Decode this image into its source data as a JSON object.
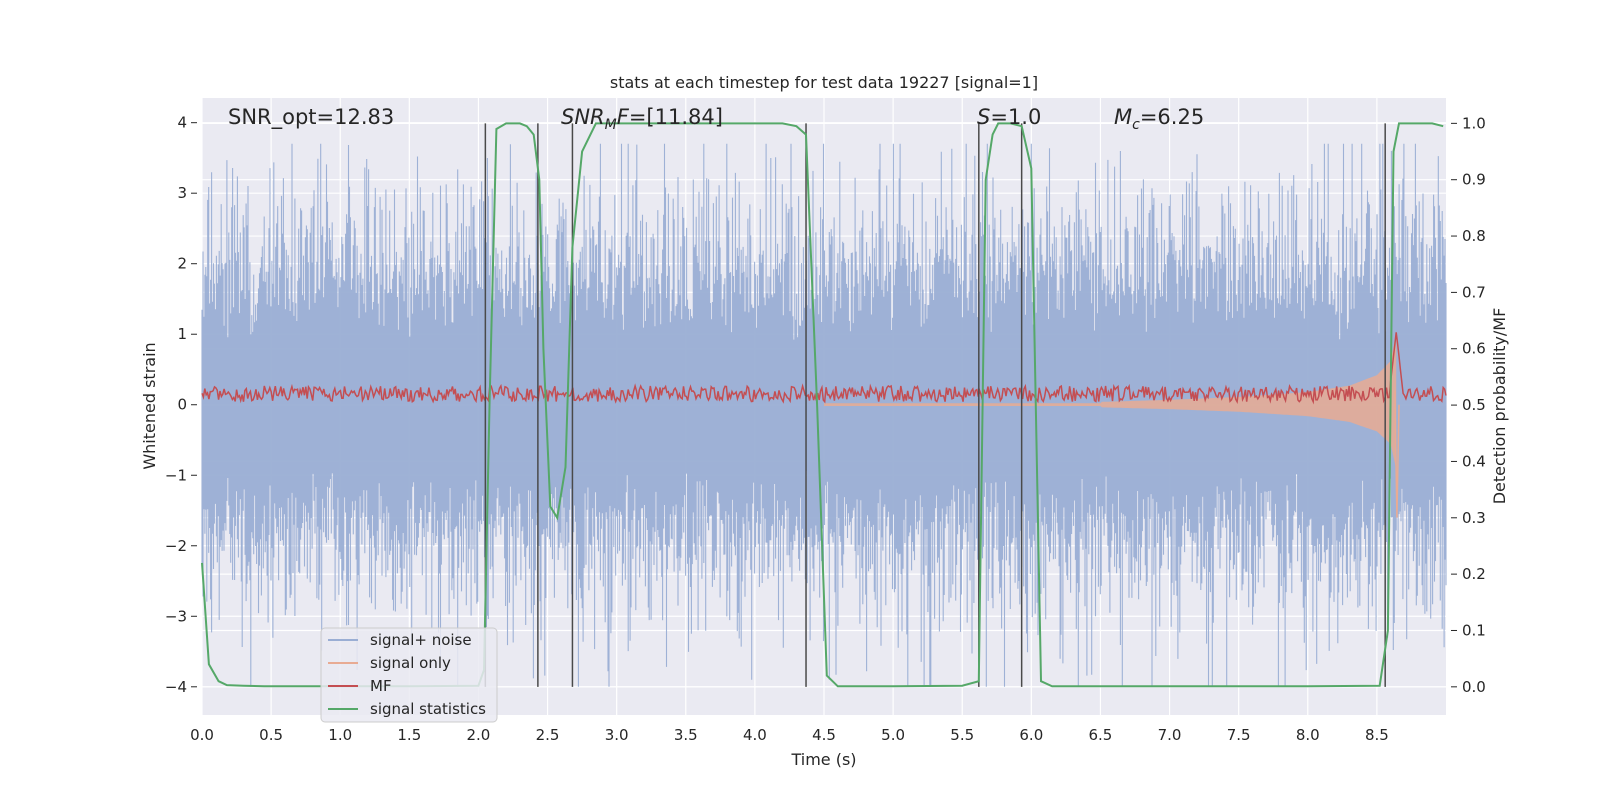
{
  "chart_data": {
    "type": "line",
    "title": "stats at each timestep for test data 19227 [signal=1]",
    "xlabel": "Time (s)",
    "ylabel_left": "Whitened strain",
    "ylabel_right": "Detection probability/MF",
    "xlim": [
      0.0,
      9.0
    ],
    "ylim_left": [
      -4.4,
      4.35
    ],
    "ylim_right": [
      -0.05,
      1.045
    ],
    "x_ticks": [
      "0.0",
      "0.5",
      "1.0",
      "1.5",
      "2.0",
      "2.5",
      "3.0",
      "3.5",
      "4.0",
      "4.5",
      "5.0",
      "5.5",
      "6.0",
      "6.5",
      "7.0",
      "7.5",
      "8.0",
      "8.5"
    ],
    "y_ticks_left": [
      "4",
      "3",
      "2",
      "1",
      "0",
      "−1",
      "−2",
      "−3",
      "−4"
    ],
    "y_ticks_right": [
      "1.0",
      "0.9",
      "0.8",
      "0.7",
      "0.6",
      "0.5",
      "0.4",
      "0.3",
      "0.2",
      "0.1",
      "0.0"
    ],
    "grid": true,
    "legend_position": "lower-left",
    "annotations": {
      "snr_opt": "SNR_opt=12.83",
      "snr_mf": "SNR_MF=[11.84]",
      "s": "S=1.0",
      "mc": "M_c=6.25"
    },
    "vertical_markers_x": [
      2.05,
      2.43,
      2.68,
      4.37,
      5.62,
      5.93,
      8.56
    ],
    "series": [
      {
        "name": "signal+ noise",
        "color": "#9aaed4",
        "description_values": "whitened strain, approx range -3.8 to 3.7"
      },
      {
        "name": "signal only",
        "color": "#e8ab93",
        "envelope": {
          "x": [
            6.5,
            7.0,
            7.5,
            8.0,
            8.3,
            8.5,
            8.6,
            8.64
          ],
          "amp": [
            0.02,
            0.05,
            0.09,
            0.16,
            0.25,
            0.4,
            0.6,
            1.0
          ]
        }
      },
      {
        "name": "MF",
        "color": "#c44e52",
        "baseline": 0.52,
        "peak": {
          "x": 8.64,
          "y": 0.63
        }
      },
      {
        "name": "signal statistics",
        "color": "#55a868",
        "x": [
          0.0,
          0.05,
          0.12,
          0.18,
          0.3,
          0.45,
          0.6,
          1.0,
          1.5,
          2.0,
          2.04,
          2.08,
          2.13,
          2.2,
          2.3,
          2.35,
          2.4,
          2.44,
          2.47,
          2.52,
          2.57,
          2.63,
          2.68,
          2.75,
          2.85,
          3.0,
          3.5,
          4.0,
          4.2,
          4.3,
          4.37,
          4.45,
          4.52,
          4.6,
          5.0,
          5.5,
          5.62,
          5.67,
          5.72,
          5.76,
          5.85,
          5.93,
          6.0,
          6.07,
          6.15,
          6.5,
          7.0,
          7.5,
          8.0,
          8.52,
          8.58,
          8.62,
          8.66,
          8.72,
          8.9,
          8.98
        ],
        "y": [
          0.22,
          0.04,
          0.01,
          0.003,
          0.002,
          0.001,
          0.001,
          0.001,
          0.001,
          0.002,
          0.03,
          0.5,
          0.99,
          1.0,
          1.0,
          0.995,
          0.98,
          0.9,
          0.6,
          0.32,
          0.3,
          0.39,
          0.78,
          0.95,
          1.0,
          1.0,
          1.0,
          1.0,
          1.0,
          0.995,
          0.98,
          0.5,
          0.02,
          0.001,
          0.001,
          0.002,
          0.01,
          0.9,
          0.98,
          1.0,
          1.0,
          0.995,
          0.92,
          0.01,
          0.001,
          0.001,
          0.001,
          0.001,
          0.001,
          0.002,
          0.1,
          0.95,
          1.0,
          1.0,
          1.0,
          0.995
        ]
      }
    ]
  }
}
